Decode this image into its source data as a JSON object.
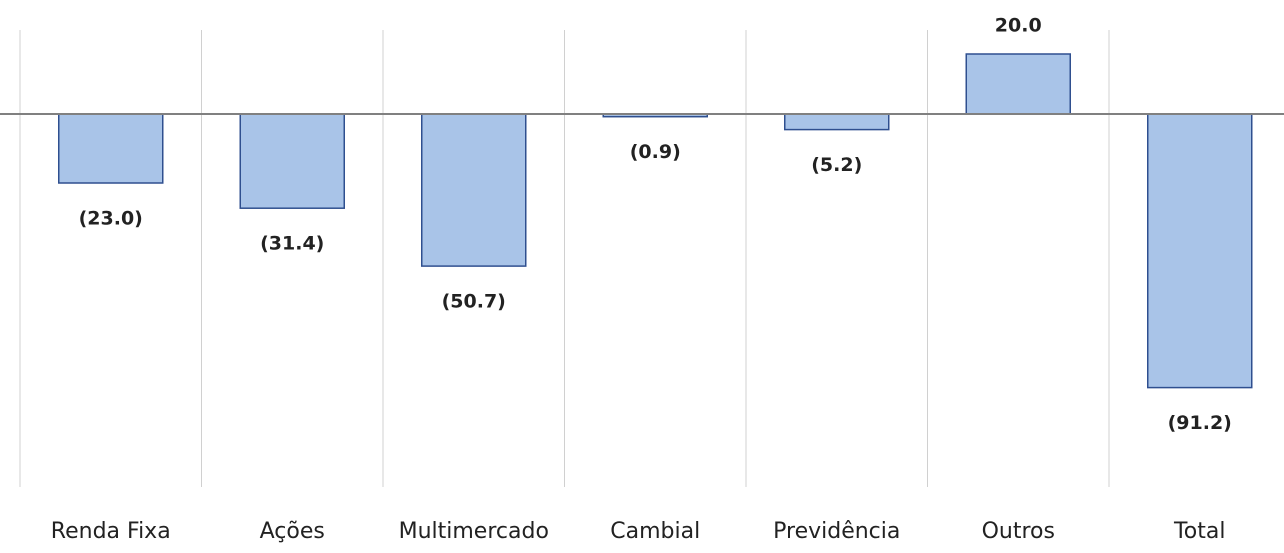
{
  "chart_data": {
    "type": "bar",
    "categories": [
      "Renda Fixa",
      "Ações",
      "Multimercado",
      "Cambial",
      "Previdência",
      "Outros",
      "Total"
    ],
    "values": [
      -23.0,
      -31.4,
      -50.7,
      -0.9,
      -5.2,
      20.0,
      -91.2
    ],
    "value_labels": [
      "(23.0)",
      "(31.4)",
      "(50.7)",
      "(0.9)",
      "(5.2)",
      "20.0",
      "(91.2)"
    ],
    "color": "#a9c4e8",
    "ylim": [
      -120,
      30
    ]
  }
}
